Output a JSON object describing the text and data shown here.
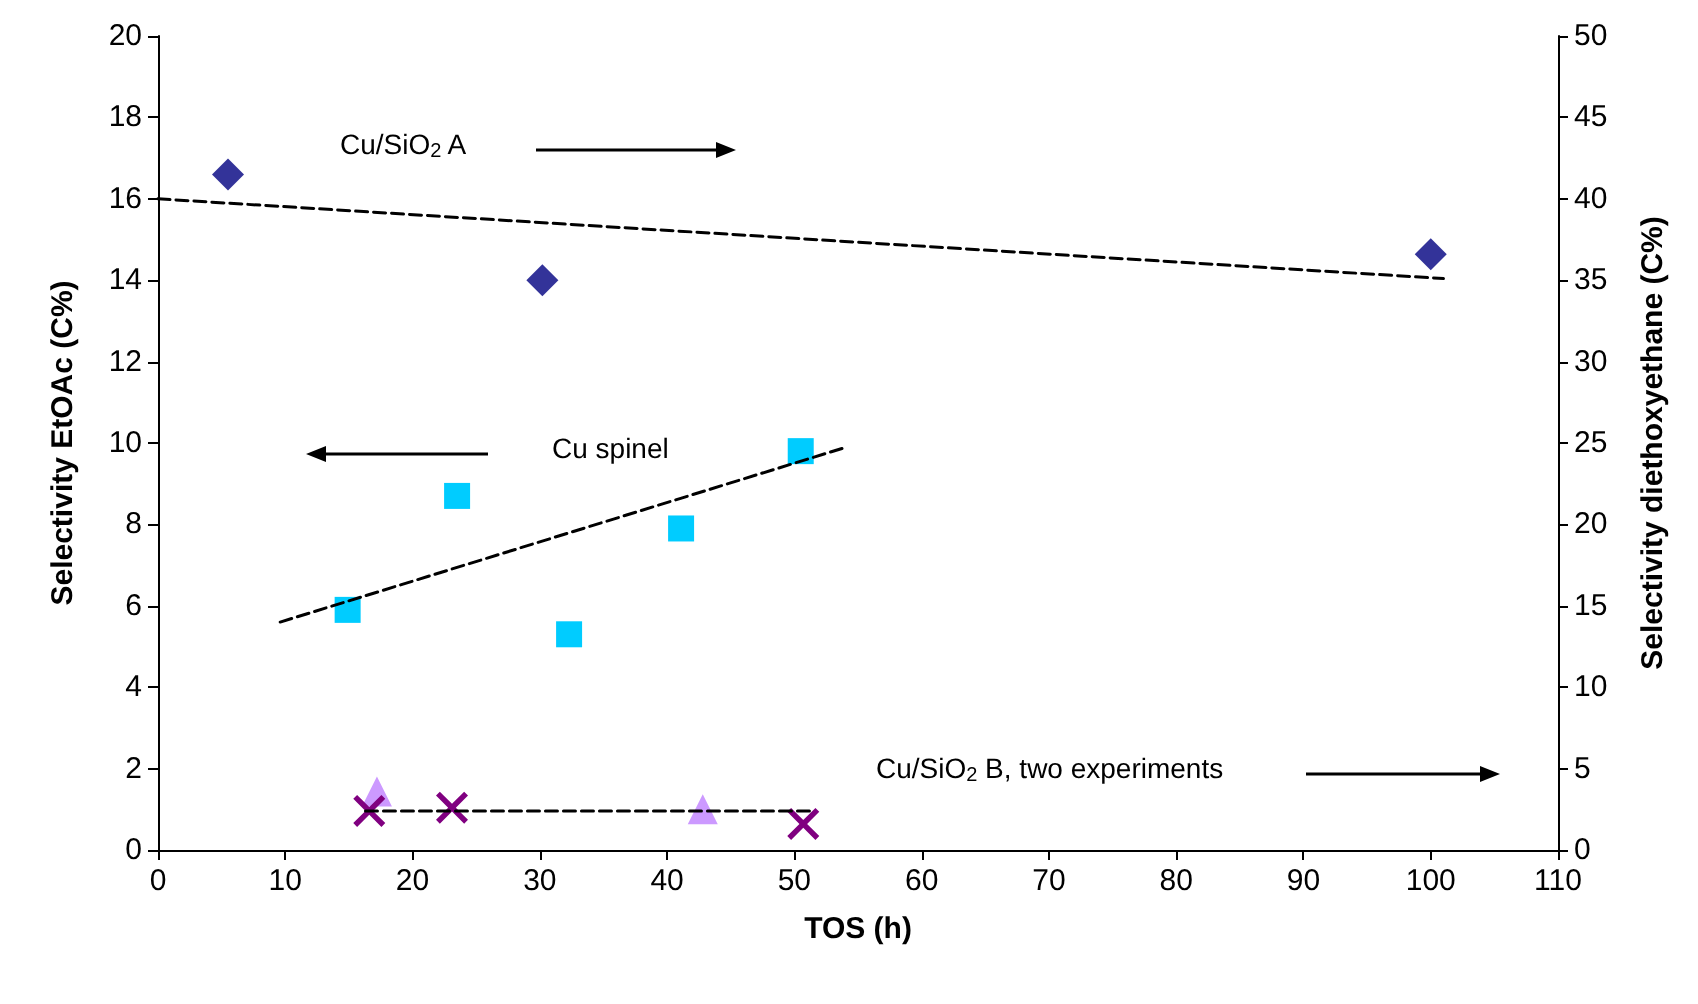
{
  "chart_data": {
    "type": "scatter",
    "xlabel": "TOS (h)",
    "ylabel": "Selectivity EtOAc (C%)",
    "y2label": "Selectivity diethoxyethane (C%)",
    "xlim": [
      0,
      110
    ],
    "xticks": [
      0,
      10,
      20,
      30,
      40,
      50,
      60,
      70,
      80,
      90,
      100,
      110
    ],
    "ylim": [
      0,
      20
    ],
    "yticks": [
      0,
      2,
      4,
      6,
      8,
      10,
      12,
      14,
      16,
      18,
      20
    ],
    "y2lim": [
      0,
      50
    ],
    "y2ticks": [
      0,
      5,
      10,
      15,
      20,
      25,
      30,
      35,
      40,
      45,
      50
    ],
    "grid": false,
    "annotations": [
      "Cu/SiO$_{2}$ A",
      "Cu spinel",
      "Cu/SiO$_{2}$ B, two experiments"
    ],
    "series": [
      {
        "axis": "y2",
        "marker": "diamond",
        "color": "#333399",
        "x": [
          5.5,
          30.2,
          100
        ],
        "values": [
          41.5,
          35,
          36.6
        ]
      },
      {
        "type": "line",
        "axis": "y2",
        "marker": "none",
        "line_style": "dashed",
        "color": "#000000",
        "x": [
          0,
          101
        ],
        "values": [
          40,
          35.1
        ]
      },
      {
        "marker": "square",
        "color": "#00ccff",
        "x": [
          14.9,
          23.5,
          32.3,
          41.1,
          50.5
        ],
        "values": [
          5.9,
          8.7,
          5.3,
          7.9,
          9.8
        ]
      },
      {
        "type": "line",
        "marker": "none",
        "line_style": "dashed",
        "color": "#000000",
        "x": [
          9.6,
          54.1
        ],
        "values": [
          5.6,
          9.9
        ]
      },
      {
        "axis": "y2",
        "marker": "triangle",
        "color": "#cc99ff",
        "x": [
          17.2,
          42.8
        ],
        "values": [
          3.6,
          2.5
        ]
      },
      {
        "axis": "y2",
        "marker": "cross",
        "color": "#800080",
        "x": [
          16.6,
          23.1,
          50.7
        ],
        "values": [
          2.4,
          2.6,
          1.6
        ]
      },
      {
        "type": "line",
        "axis": "y2",
        "marker": "none",
        "line_style": "dashed",
        "color": "#000000",
        "x": [
          16.3,
          51.6
        ],
        "values": [
          2.4,
          2.4
        ]
      }
    ]
  }
}
